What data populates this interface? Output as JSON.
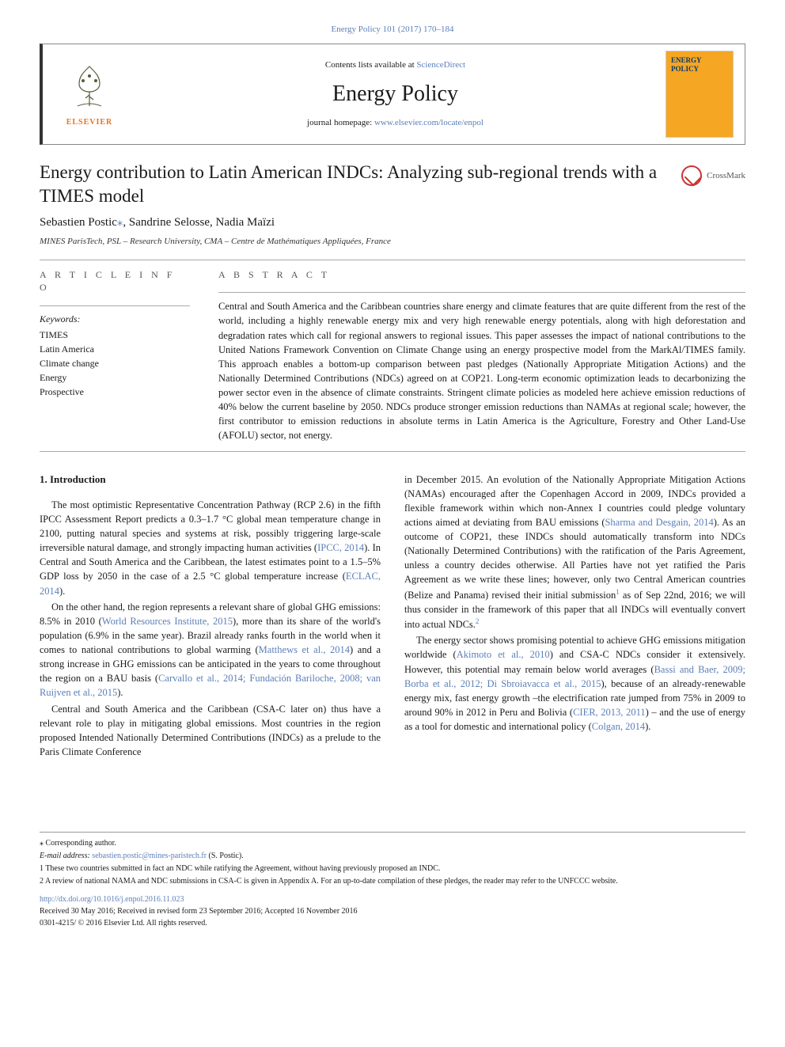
{
  "top_citation": "Energy Policy 101 (2017) 170–184",
  "header": {
    "contents_prefix": "Contents lists available at ",
    "contents_link": "ScienceDirect",
    "journal_name": "Energy Policy",
    "homepage_prefix": "journal homepage: ",
    "homepage_url": "www.elsevier.com/locate/enpol",
    "elsevier_label": "ELSEVIER",
    "cover_line1": "ENERGY",
    "cover_line2": "POLICY"
  },
  "article": {
    "title": "Energy contribution to Latin American INDCs: Analyzing sub-regional trends with a TIMES model",
    "crossmark_label": "CrossMark",
    "authors": "Sebastien Postic",
    "authors_rest": ", Sandrine Selosse, Nadia Maïzi",
    "corr_mark": "⁎",
    "affiliation": "MINES ParisTech, PSL – Research University, CMA – Centre de Mathématiques Appliquées, France"
  },
  "info": {
    "heading": "A R T I C L E   I N F O",
    "keywords_label": "Keywords:",
    "keywords": [
      "TIMES",
      "Latin America",
      "Climate change",
      "Energy",
      "Prospective"
    ]
  },
  "abstract": {
    "heading": "A B S T R A C T",
    "text": "Central and South America and the Caribbean countries share energy and climate features that are quite different from the rest of the world, including a highly renewable energy mix and very high renewable energy potentials, along with high deforestation and degradation rates which call for regional answers to regional issues. This paper assesses the impact of national contributions to the United Nations Framework Convention on Climate Change using an energy prospective model from the MarkAl/TIMES family. This approach enables a bottom-up comparison between past pledges (Nationally Appropriate Mitigation Actions) and the Nationally Determined Contributions (NDCs) agreed on at COP21. Long-term economic optimization leads to decarbonizing the power sector even in the absence of climate constraints. Stringent climate policies as modeled here achieve emission reductions of 40% below the current baseline by 2050. NDCs produce stronger emission reductions than NAMAs at regional scale; however, the first contributor to emission reductions in absolute terms in Latin America is the Agriculture, Forestry and Other Land-Use (AFOLU) sector, not energy."
  },
  "body": {
    "section_heading": "1. Introduction",
    "left": [
      "The most optimistic Representative Concentration Pathway (RCP 2.6) in the fifth IPCC Assessment Report predicts a 0.3–1.7 °C global mean temperature change in 2100, putting natural species and systems at risk, possibly triggering large-scale irreversible natural damage, and strongly impacting human activities (<span class='link'>IPCC, 2014</span>). In Central and South America and the Caribbean, the latest estimates point to a 1.5–5% GDP loss by 2050 in the case of a 2.5 °C global temperature increase (<span class='link'>ECLAC, 2014</span>).",
      "On the other hand, the region represents a relevant share of global GHG emissions: 8.5% in 2010 (<span class='link'>World Resources Institute, 2015</span>), more than its share of the world's population (6.9% in the same year). Brazil already ranks fourth in the world when it comes to national contributions to global warming (<span class='link'>Matthews et al., 2014</span>) and a strong increase in GHG emissions can be anticipated in the years to come throughout the region on a BAU basis (<span class='link'>Carvallo et al., 2014; Fundación Bariloche, 2008; van Ruijven et al., 2015</span>).",
      "Central and South America and the Caribbean (CSA-C later on) thus have a relevant role to play in mitigating global emissions. Most countries in the region proposed Intended Nationally Determined Contributions (INDCs) as a prelude to the Paris Climate Conference"
    ],
    "right": [
      "in December 2015. An evolution of the Nationally Appropriate Mitigation Actions (NAMAs) encouraged after the Copenhagen Accord in 2009, INDCs provided a flexible framework within which non-Annex I countries could pledge voluntary actions aimed at deviating from BAU emissions (<span class='link'>Sharma and Desgain, 2014</span>). As an outcome of COP21, these INDCs should automatically transform into NDCs (Nationally Determined Contributions) with the ratification of the Paris Agreement, unless a country decides otherwise. All Parties have not yet ratified the Paris Agreement as we write these lines; however, only two Central American countries (Belize and Panama) revised their initial submission<span class='sup'>1</span> as of Sep 22nd, 2016; we will thus consider in the framework of this paper that all INDCs will eventually convert into actual NDCs.<span class='sup'>2</span>",
      "The energy sector shows promising potential to achieve GHG emissions mitigation worldwide (<span class='link'>Akimoto et al., 2010</span>) and CSA-C NDCs consider it extensively. However, this potential may remain below world averages (<span class='link'>Bassi and Baer, 2009; Borba et al., 2012; Di Sbroiavacca et al., 2015</span>), because of an already-renewable energy mix, fast energy growth –the electrification rate jumped from 75% in 2009 to around 90% in 2012 in Peru and Bolivia (<span class='link'>CIER, 2013, 2011</span>) – and the use of energy as a tool for domestic and international policy (<span class='link'>Colgan, 2014</span>)."
    ]
  },
  "footnotes": {
    "corr": "⁎ Corresponding author.",
    "email_label": "E-mail address: ",
    "email": "sebastien.postic@mines-paristech.fr",
    "email_suffix": " (S. Postic).",
    "fn1": "1 These two countries submitted in fact an NDC while ratifying the Agreement, without having previously proposed an INDC.",
    "fn2": "2 A review of national NAMA and NDC submissions in CSA-C is given in Appendix A. For an up-to-date compilation of these pledges, the reader may refer to the UNFCCC website."
  },
  "doi": {
    "url": "http://dx.doi.org/10.1016/j.enpol.2016.11.023",
    "received": "Received 30 May 2016; Received in revised form 23 September 2016; Accepted 16 November 2016",
    "copyright": "0301-4215/ © 2016 Elsevier Ltd. All rights reserved."
  },
  "colors": {
    "link": "#5b7fb8",
    "elsevier_orange": "#e8731f",
    "cover_bg": "#f5a623",
    "cover_text": "#0a3a6b"
  }
}
